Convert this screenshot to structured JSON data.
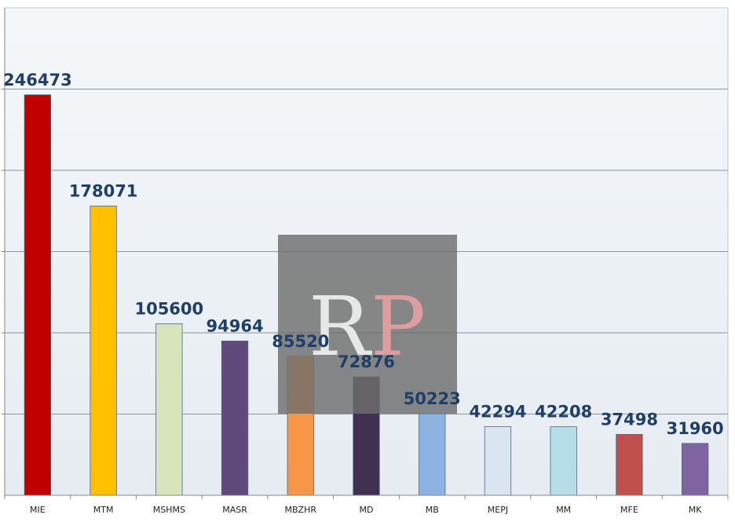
{
  "chart_data": {
    "type": "bar",
    "categories": [
      "MIE",
      "MTM",
      "MSHMS",
      "MASR",
      "MBZHR",
      "MD",
      "MB",
      "MEPJ",
      "MM",
      "MFE",
      "MK"
    ],
    "values": [
      246473,
      178071,
      105600,
      94964,
      85520,
      72876,
      50223,
      42294,
      42208,
      37498,
      31960
    ],
    "data_labels": [
      "246473",
      "178071",
      "105600",
      "94964",
      "85520",
      "72876",
      "50223",
      "42294",
      "42208",
      "37498",
      "31960"
    ],
    "bar_colors": [
      "#c00000",
      "#ffc000",
      "#d8e4bc",
      "#604a7b",
      "#f79646",
      "#403151",
      "#8db3e2",
      "#dbe5f1",
      "#b7dde8",
      "#c0504d",
      "#8064a2"
    ],
    "title": "",
    "xlabel": "",
    "ylabel": "",
    "ylim": [
      0,
      300000
    ],
    "grid": true,
    "plot_background": "#eef2f6"
  },
  "watermark": {
    "letter_r": "R",
    "letter_p": "P",
    "r_color": "#f2f2f2",
    "p_color": "#e8a0a4",
    "box_color": "#6e6e6e"
  }
}
